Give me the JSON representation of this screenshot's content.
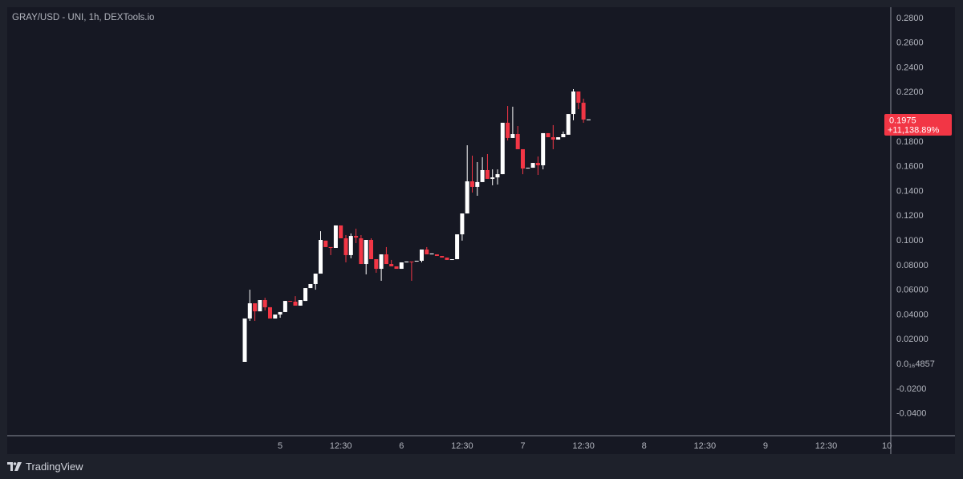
{
  "header": {
    "title": "GRAY/USD - UNI, 1h, DEXTools.io"
  },
  "footer": {
    "brand": "TradingView"
  },
  "colors": {
    "up": "#ffffff",
    "down": "#f23645",
    "background": "#161823",
    "text": "#b2b5be"
  },
  "chart_data": {
    "type": "candlestick",
    "title": "GRAY/USD - UNI, 1h, DEXTools.io",
    "interval": "1h",
    "y_ticks": [
      "0.2800",
      "0.2600",
      "0.2400",
      "0.2200",
      "0.1800",
      "0.1600",
      "0.1400",
      "0.1200",
      "0.1000",
      "0.08000",
      "0.06000",
      "0.04000",
      "0.02000",
      "0.0₁₆4857",
      "-0.0200",
      "-0.0400"
    ],
    "y_tick_values": [
      0.28,
      0.26,
      0.24,
      0.22,
      0.18,
      0.16,
      0.14,
      0.12,
      0.1,
      0.08,
      0.06,
      0.04,
      0.02,
      0.0,
      -0.02,
      -0.04
    ],
    "ylim": [
      -0.055,
      0.29
    ],
    "x_ticks": [
      "5",
      "12:30",
      "6",
      "12:30",
      "7",
      "12:30",
      "8",
      "12:30",
      "9",
      "12:30",
      "10"
    ],
    "last_price": {
      "value": "0.1975",
      "change": "+11,138.89%"
    },
    "candles_ohlc": [
      [
        0.0013,
        0.0364,
        0.0013,
        0.0364
      ],
      [
        0.0364,
        0.0597,
        0.0344,
        0.0487
      ],
      [
        0.0487,
        0.0487,
        0.0344,
        0.0422
      ],
      [
        0.0422,
        0.0513,
        0.0422,
        0.0513
      ],
      [
        0.0513,
        0.0532,
        0.0429,
        0.0455
      ],
      [
        0.0455,
        0.0455,
        0.0364,
        0.0364
      ],
      [
        0.0364,
        0.0396,
        0.0364,
        0.0396
      ],
      [
        0.0396,
        0.0416,
        0.037,
        0.0416
      ],
      [
        0.0416,
        0.0506,
        0.0416,
        0.0506
      ],
      [
        0.0506,
        0.0506,
        0.05,
        0.05
      ],
      [
        0.05,
        0.0545,
        0.0468,
        0.0468
      ],
      [
        0.0468,
        0.0513,
        0.0468,
        0.0513
      ],
      [
        0.0506,
        0.061,
        0.0506,
        0.061
      ],
      [
        0.061,
        0.0643,
        0.061,
        0.0643
      ],
      [
        0.0643,
        0.0727,
        0.0597,
        0.0727
      ],
      [
        0.0727,
        0.1071,
        0.0727,
        0.1
      ],
      [
        0.0994,
        0.0994,
        0.0942,
        0.0942
      ],
      [
        0.0942,
        0.0942,
        0.0877,
        0.0935
      ],
      [
        0.0935,
        0.1117,
        0.0935,
        0.1117
      ],
      [
        0.1117,
        0.1117,
        0.1013,
        0.1013
      ],
      [
        0.1013,
        0.1039,
        0.0818,
        0.0877
      ],
      [
        0.0877,
        0.1052,
        0.0851,
        0.1032
      ],
      [
        0.1032,
        0.1091,
        0.0974,
        0.1019
      ],
      [
        0.1013,
        0.1039,
        0.0805,
        0.0805
      ],
      [
        0.0805,
        0.1,
        0.0721,
        0.1
      ],
      [
        0.1,
        0.1013,
        0.0844,
        0.0844
      ],
      [
        0.0844,
        0.0844,
        0.0734,
        0.0766
      ],
      [
        0.0766,
        0.0883,
        0.0669,
        0.0883
      ],
      [
        0.0883,
        0.0942,
        0.0805,
        0.0805
      ],
      [
        0.0805,
        0.0838,
        0.0786,
        0.0786
      ],
      [
        0.0786,
        0.0786,
        0.0766,
        0.0766
      ],
      [
        0.0766,
        0.0818,
        0.0766,
        0.0818
      ],
      [
        0.0818,
        0.0825,
        0.0818,
        0.0825
      ],
      [
        0.0825,
        0.0825,
        0.0669,
        0.0822
      ],
      [
        0.0825,
        0.0831,
        0.0825,
        0.0831
      ],
      [
        0.0831,
        0.0922,
        0.0818,
        0.0922
      ],
      [
        0.0922,
        0.0942,
        0.0883,
        0.0883
      ],
      [
        0.0883,
        0.089,
        0.0883,
        0.089
      ],
      [
        0.0883,
        0.0883,
        0.087,
        0.087
      ],
      [
        0.087,
        0.087,
        0.0857,
        0.0857
      ],
      [
        0.0857,
        0.0857,
        0.0838,
        0.0838
      ],
      [
        0.0838,
        0.0844,
        0.0838,
        0.0844
      ],
      [
        0.0844,
        0.1045,
        0.0844,
        0.1045
      ],
      [
        0.1045,
        0.1214,
        0.0994,
        0.1214
      ],
      [
        0.1214,
        0.1766,
        0.1214,
        0.1474
      ],
      [
        0.1474,
        0.1682,
        0.1383,
        0.1429
      ],
      [
        0.1429,
        0.163,
        0.1357,
        0.1468
      ],
      [
        0.1468,
        0.1669,
        0.1468,
        0.1565
      ],
      [
        0.1565,
        0.1695,
        0.1494,
        0.1494
      ],
      [
        0.1494,
        0.1571,
        0.1442,
        0.1506
      ],
      [
        0.1506,
        0.1571,
        0.1448,
        0.1532
      ],
      [
        0.1532,
        0.1948,
        0.1532,
        0.1948
      ],
      [
        0.1948,
        0.2084,
        0.1805,
        0.1825
      ],
      [
        0.1825,
        0.2078,
        0.1825,
        0.1857
      ],
      [
        0.1857,
        0.1922,
        0.1734,
        0.1734
      ],
      [
        0.1734,
        0.1734,
        0.1532,
        0.1578
      ],
      [
        0.1578,
        0.1584,
        0.1578,
        0.1584
      ],
      [
        0.1584,
        0.1623,
        0.1584,
        0.1623
      ],
      [
        0.1623,
        0.1675,
        0.1526,
        0.1604
      ],
      [
        0.1604,
        0.1864,
        0.1571,
        0.1864
      ],
      [
        0.1864,
        0.1864,
        0.1831,
        0.1831
      ],
      [
        0.1831,
        0.1929,
        0.1734,
        0.1812
      ],
      [
        0.1812,
        0.1831,
        0.1812,
        0.1831
      ],
      [
        0.1831,
        0.1877,
        0.1831,
        0.1857
      ],
      [
        0.1851,
        0.2019,
        0.1851,
        0.2019
      ],
      [
        0.2019,
        0.2221,
        0.1968,
        0.2201
      ],
      [
        0.2201,
        0.2201,
        0.2058,
        0.211
      ],
      [
        0.211,
        0.2143,
        0.1948,
        0.1974
      ],
      [
        0.1975,
        0.1975,
        0.1975,
        0.1975
      ]
    ]
  }
}
